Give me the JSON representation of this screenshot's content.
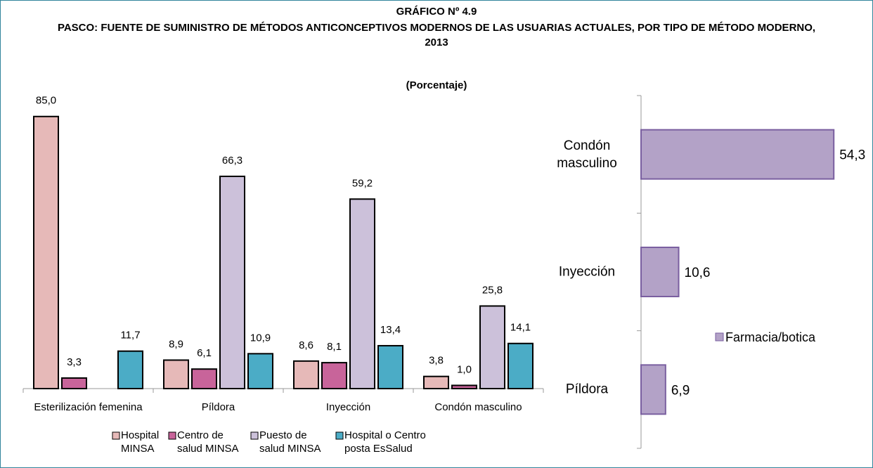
{
  "chart_data": [
    {
      "type": "bar",
      "title": "GRÁFICO Nº 4.9",
      "subtitle": "PASCO: FUENTE DE SUMINISTRO DE MÉTODOS ANTICONCEPTIVOS MODERNOS DE LAS USUARIAS ACTUALES, POR TIPO DE MÉTODO MODERNO, 2013",
      "unit": "(Porcentaje)",
      "categories": [
        "Esterilización femenina",
        "Píldora",
        "Inyección",
        "Condón masculino"
      ],
      "series": [
        {
          "name": "Hospital MINSA",
          "color": "#e6b9b8",
          "values": [
            85.0,
            8.9,
            8.6,
            3.8
          ],
          "value_labels": [
            "85,0",
            "8,9",
            "8,6",
            "3,8"
          ]
        },
        {
          "name": "Centro de salud MINSA",
          "color": "#c8649a",
          "values": [
            3.3,
            6.1,
            8.1,
            1.0
          ],
          "value_labels": [
            "3,3",
            "6,1",
            "8,1",
            "1,0"
          ]
        },
        {
          "name": "Puesto de salud MINSA",
          "color": "#ccc1da",
          "values": [
            null,
            66.3,
            59.2,
            25.8
          ],
          "value_labels": [
            null,
            "66,3",
            "59,2",
            "25,8"
          ]
        },
        {
          "name": "Hospital o Centro posta EsSalud",
          "color": "#4bacc6",
          "values": [
            11.7,
            10.9,
            13.4,
            14.1
          ],
          "value_labels": [
            "11,7",
            "10,9",
            "13,4",
            "14,1"
          ]
        }
      ],
      "ylim": [
        0,
        90
      ]
    },
    {
      "type": "hbar",
      "categories": [
        "Condón masculino",
        "Inyección",
        "Píldora"
      ],
      "series": [
        {
          "name": "Farmacia/botica",
          "color": "#b3a2c7",
          "values": [
            54.3,
            10.6,
            6.9
          ],
          "value_labels": [
            "54,3",
            "10,6",
            "6,9"
          ]
        }
      ],
      "xlim": [
        0,
        60
      ]
    }
  ]
}
